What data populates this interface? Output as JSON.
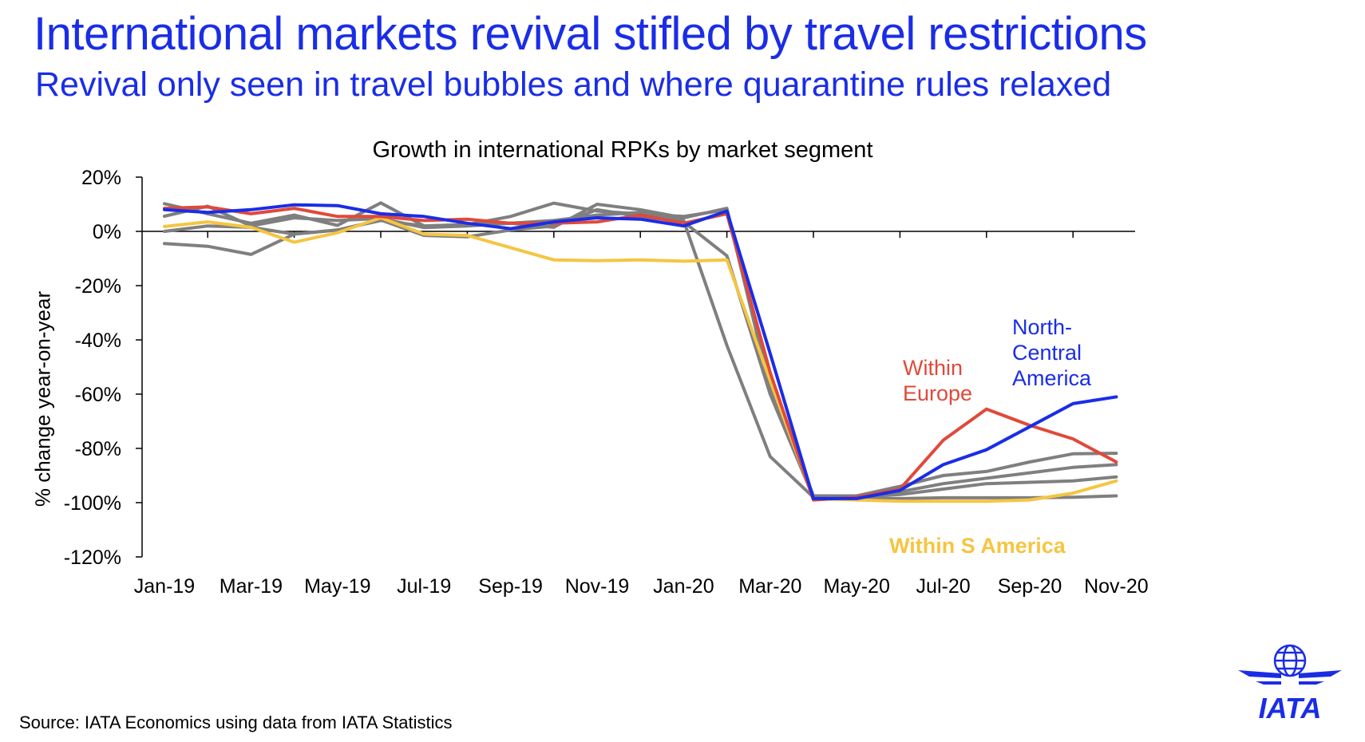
{
  "header": {
    "title": "International markets revival stifled by travel restrictions",
    "subtitle": "Revival only seen in travel bubbles and where quarantine rules relaxed"
  },
  "footer": {
    "source": "Source: IATA Economics using data from IATA Statistics"
  },
  "logo": {
    "text": "IATA",
    "icon": "iata-globe-wings-logo"
  },
  "colors": {
    "brand_blue": "#1a2de6",
    "europe_red": "#e0493a",
    "s_america_yellow": "#f5c542",
    "other_grey": "#7f7f7f"
  },
  "chart_data": {
    "type": "line",
    "title": "Growth in international RPKs by market segment",
    "ylabel": "% change year-on-year",
    "xlabel": "",
    "ylim": [
      -120,
      20
    ],
    "yticks": [
      "20%",
      "0%",
      "-20%",
      "-40%",
      "-60%",
      "-80%",
      "-100%",
      "-120%"
    ],
    "ytick_values": [
      20,
      0,
      -20,
      -40,
      -60,
      -80,
      -100,
      -120
    ],
    "x": [
      "Jan-19",
      "Feb-19",
      "Mar-19",
      "Apr-19",
      "May-19",
      "Jun-19",
      "Jul-19",
      "Aug-19",
      "Sep-19",
      "Oct-19",
      "Nov-19",
      "Dec-19",
      "Jan-20",
      "Feb-20",
      "Mar-20",
      "Apr-20",
      "May-20",
      "Jun-20",
      "Jul-20",
      "Aug-20",
      "Sep-20",
      "Oct-20",
      "Nov-20"
    ],
    "xtick_labels": [
      "Jan-19",
      "Mar-19",
      "May-19",
      "Jul-19",
      "Sep-19",
      "Nov-19",
      "Jan-20",
      "Mar-20",
      "May-20",
      "Jul-20",
      "Sep-20",
      "Nov-20"
    ],
    "grid": false,
    "series": [
      {
        "name": "",
        "color": "#7f7f7f",
        "values": [
          10.2,
          6.5,
          3.0,
          6.0,
          2.2,
          10.5,
          2.0,
          2.5,
          5.5,
          10.4,
          7.5,
          6.4,
          5.5,
          8.0,
          -58.0,
          -97.5,
          -97.5,
          -94.0,
          -90.0,
          -88.5,
          -85.0,
          -82.0,
          -81.8
        ]
      },
      {
        "name": "",
        "color": "#7f7f7f",
        "values": [
          5.6,
          9.3,
          2.0,
          5.0,
          4.0,
          4.8,
          1.4,
          2.0,
          3.0,
          1.5,
          10.0,
          8.0,
          5.0,
          8.5,
          -57.0,
          -97.5,
          -97.5,
          -96.0,
          -93.0,
          -91.0,
          -89.0,
          -87.0,
          -86.0
        ]
      },
      {
        "name": "",
        "color": "#7f7f7f",
        "values": [
          0.0,
          2.0,
          1.5,
          -1.0,
          0.5,
          4.2,
          -1.5,
          -2.0,
          0.5,
          2.0,
          8.0,
          5.5,
          3.5,
          -9.0,
          -60.0,
          -98.0,
          -98.0,
          -97.0,
          -95.0,
          -93.0,
          -92.5,
          -92.0,
          -90.5
        ]
      },
      {
        "name": "",
        "color": "#7f7f7f",
        "values": [
          -4.5,
          -5.5,
          -8.5,
          -1.0,
          0.5,
          4.0,
          2.0,
          2.5,
          3.0,
          4.0,
          6.0,
          7.0,
          4.0,
          -42.0,
          -83.0,
          -98.0,
          -98.5,
          -98.5,
          -98.2,
          -98.2,
          -98.2,
          -98.0,
          -97.5
        ]
      },
      {
        "name": "Within S America",
        "color": "#f5c542",
        "values": [
          1.8,
          3.5,
          1.5,
          -4.0,
          -0.5,
          5.0,
          -1.0,
          -1.5,
          -6.0,
          -10.5,
          -10.8,
          -10.5,
          -11.0,
          -10.5,
          -55.0,
          -98.5,
          -99.0,
          -99.5,
          -99.5,
          -99.5,
          -99.0,
          -96.5,
          -92.0
        ]
      },
      {
        "name": "Within Europe",
        "color": "#e0493a",
        "values": [
          8.5,
          9.0,
          6.5,
          8.5,
          5.5,
          5.5,
          4.0,
          4.5,
          3.0,
          3.0,
          3.5,
          6.0,
          3.0,
          6.5,
          -52.0,
          -99.0,
          -98.0,
          -95.0,
          -77.0,
          -65.5,
          -71.5,
          -76.5,
          -85.0
        ]
      },
      {
        "name": "North-Central America",
        "color": "#1a2de6",
        "values": [
          8.0,
          7.0,
          8.0,
          9.8,
          9.5,
          6.5,
          5.5,
          3.0,
          1.0,
          3.5,
          5.0,
          4.5,
          2.0,
          7.5,
          -45.0,
          -98.5,
          -98.5,
          -95.5,
          -86.0,
          -80.5,
          -72.0,
          -63.5,
          -61.0
        ]
      }
    ],
    "annotations": [
      {
        "lines": [
          "Within",
          "Europe"
        ],
        "color": "#e0493a"
      },
      {
        "lines": [
          "North-",
          "Central",
          "America"
        ],
        "color": "#1a2de6"
      },
      {
        "lines": [
          "Within S America"
        ],
        "color": "#f5c542"
      }
    ]
  }
}
